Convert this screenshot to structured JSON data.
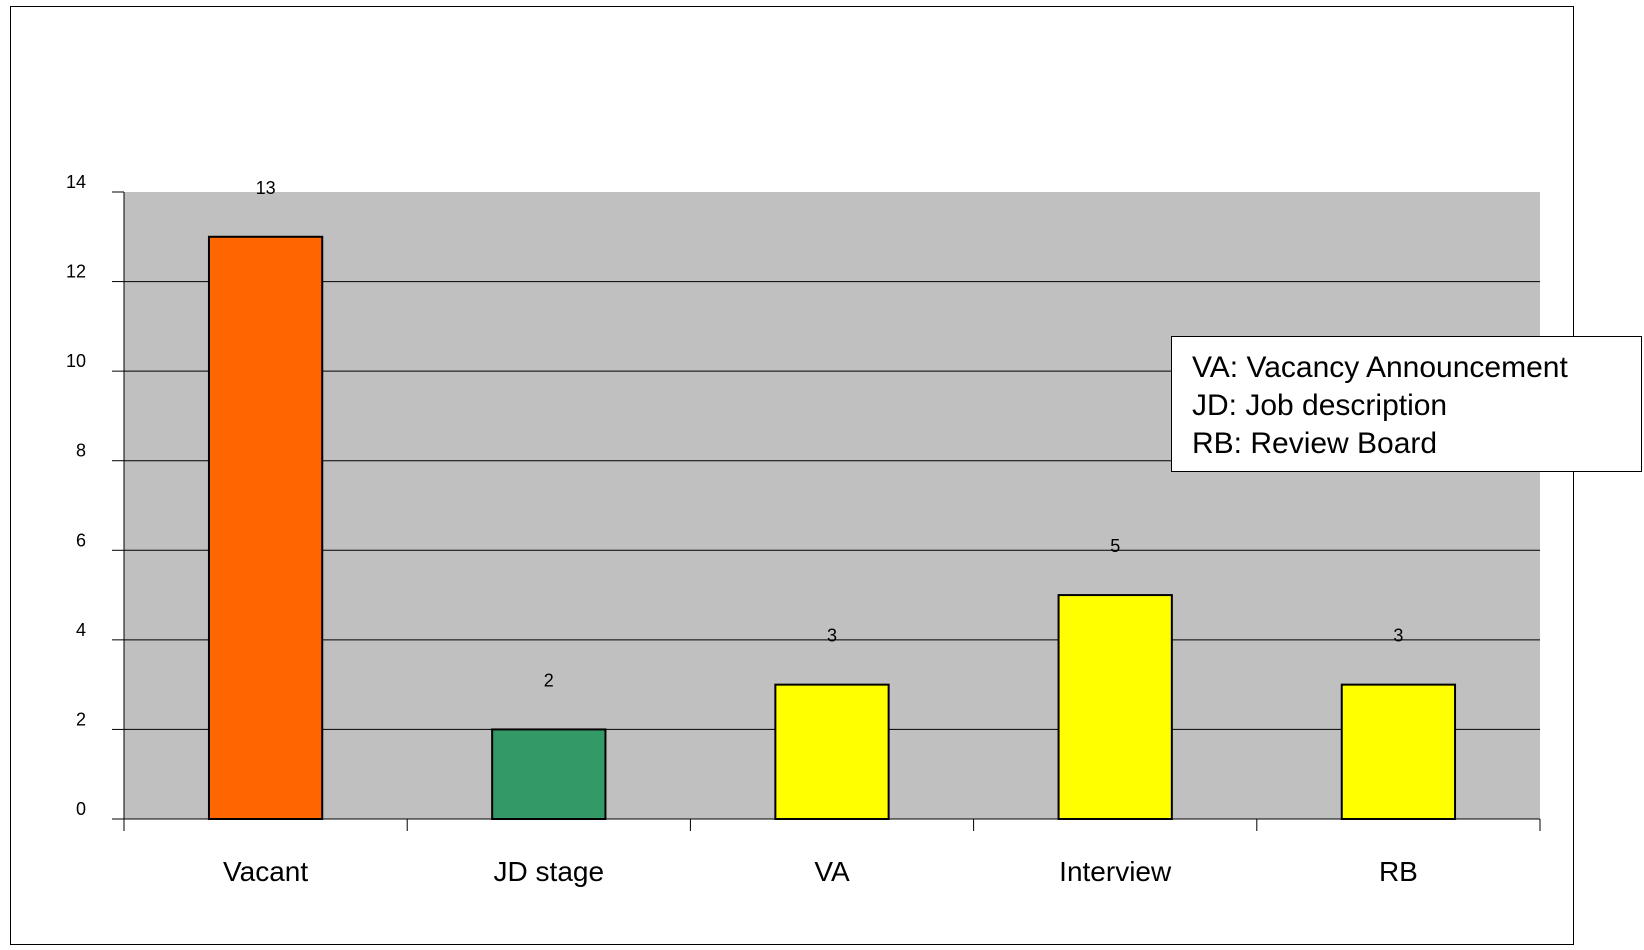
{
  "chart_data": {
    "type": "bar",
    "title": "",
    "xlabel": "",
    "ylabel": "",
    "categories": [
      "Vacant",
      "JD stage",
      "VA",
      "Interview",
      "RB"
    ],
    "values": [
      13,
      2,
      3,
      5,
      3
    ],
    "data_labels": [
      "13",
      "2",
      "3",
      "5",
      "3"
    ],
    "bar_colors": [
      "#FF6600",
      "#339966",
      "#FFFF00",
      "#FFFF00",
      "#FFFF00"
    ],
    "ylim": [
      0,
      14
    ],
    "yticks": [
      0,
      2,
      4,
      6,
      8,
      10,
      12,
      14
    ],
    "ytick_labels": [
      "0",
      "2",
      "4",
      "6",
      "8",
      "10",
      "12",
      "14"
    ],
    "grid": true,
    "plot_background": "#C0C0C0",
    "annotation": [
      "VA: Vacancy Announcement",
      "JD: Job description",
      "RB: Review Board"
    ]
  }
}
